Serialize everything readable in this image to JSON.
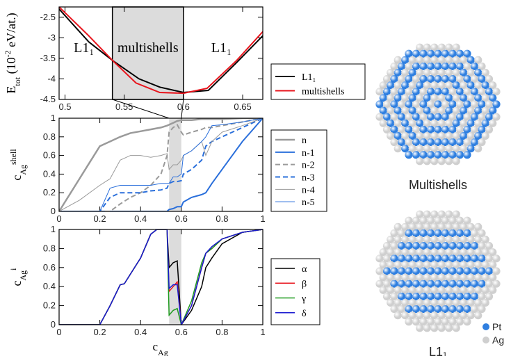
{
  "chart_data": [
    {
      "type": "line",
      "xlim": [
        0.495,
        0.667
      ],
      "ylim": [
        -4.5,
        -2.25
      ],
      "xticks": [
        0.5,
        0.55,
        0.6,
        0.65
      ],
      "yticks": [
        -2.5,
        -3,
        -3.5,
        -4,
        -4.5
      ],
      "shade": [
        0.54,
        0.6
      ],
      "ylabel": [
        {
          "text": "E"
        },
        {
          "text": "tot",
          "shift": "sub"
        },
        {
          "text": " (10"
        },
        {
          "text": "-2",
          "shift": "sup"
        },
        {
          "text": " eV/at.)"
        }
      ],
      "annotations": [
        "L1₁",
        "multishells",
        "L1₁"
      ],
      "series": [
        {
          "name": "L1₁",
          "color": "#000000",
          "width": 2,
          "x": [
            0.495,
            0.52,
            0.54,
            0.5625,
            0.58,
            0.6,
            0.621,
            0.645,
            0.667
          ],
          "values": [
            -2.3,
            -3.1,
            -3.55,
            -4.0,
            -4.2,
            -4.33,
            -4.28,
            -3.6,
            -2.95
          ]
        },
        {
          "name": "multishells",
          "color": "#e8141c",
          "width": 2,
          "x": [
            0.495,
            0.52,
            0.54,
            0.56,
            0.58,
            0.6,
            0.62,
            0.645,
            0.667
          ],
          "values": [
            -2.25,
            -2.95,
            -3.55,
            -4.1,
            -4.33,
            -4.35,
            -4.23,
            -3.55,
            -2.85
          ]
        }
      ]
    },
    {
      "type": "line",
      "xlim": [
        0,
        1
      ],
      "ylim": [
        0,
        1
      ],
      "xticks": [
        0,
        0.2,
        0.4,
        0.6,
        0.8,
        1
      ],
      "yticks": [
        0,
        0.2,
        0.4,
        0.6,
        0.8,
        1
      ],
      "shade": [
        0.54,
        0.6
      ],
      "ylabel": [
        {
          "text": "c"
        },
        {
          "text": "Ag",
          "shift": "sub"
        },
        {
          "text": "shell",
          "shift": "sup"
        }
      ],
      "x": [
        0,
        0.1,
        0.2,
        0.25,
        0.3,
        0.35,
        0.4,
        0.45,
        0.5,
        0.53,
        0.54,
        0.56,
        0.58,
        0.6,
        0.61,
        0.65,
        0.7,
        0.72,
        0.75,
        0.8,
        0.9,
        1
      ],
      "series": [
        {
          "name": "n",
          "color": "#9a9a9a",
          "width": 2.5,
          "dash": false,
          "values": [
            0,
            0.35,
            0.7,
            0.75,
            0.8,
            0.84,
            0.86,
            0.88,
            0.9,
            0.92,
            0.93,
            0.95,
            0.97,
            0.98,
            0.98,
            0.98,
            0.99,
            0.99,
            0.99,
            0.99,
            1,
            1
          ]
        },
        {
          "name": "n-1",
          "color": "#2a6fdb",
          "width": 2,
          "dash": false,
          "values": [
            0,
            0,
            0,
            0,
            0,
            0,
            0,
            0,
            0,
            0,
            0.02,
            0.03,
            0.05,
            0.05,
            0.1,
            0.15,
            0.18,
            0.2,
            0.3,
            0.45,
            0.75,
            1
          ]
        },
        {
          "name": "n-2",
          "color": "#9a9a9a",
          "width": 2,
          "dash": true,
          "values": [
            0,
            0,
            0,
            0,
            0.08,
            0.15,
            0.2,
            0.28,
            0.4,
            0.6,
            0.85,
            0.9,
            0.93,
            0.85,
            0.82,
            0.85,
            0.88,
            0.9,
            0.9,
            0.92,
            0.96,
            1
          ]
        },
        {
          "name": "n-3",
          "color": "#2a6fdb",
          "width": 2,
          "dash": true,
          "values": [
            0,
            0,
            0,
            0.15,
            0.2,
            0.2,
            0.2,
            0.22,
            0.23,
            0.25,
            0.3,
            0.32,
            0.32,
            0.33,
            0.4,
            0.45,
            0.55,
            0.7,
            0.75,
            0.8,
            0.9,
            1
          ]
        },
        {
          "name": "n-4",
          "color": "#9a9a9a",
          "width": 1,
          "dash": false,
          "values": [
            0,
            0.12,
            0.28,
            0.35,
            0.55,
            0.6,
            0.6,
            0.58,
            0.6,
            0.62,
            0.45,
            0.5,
            0.5,
            0.55,
            0.6,
            0.65,
            0.75,
            0.6,
            0.75,
            0.85,
            0.92,
            1
          ]
        },
        {
          "name": "n-5",
          "color": "#2a6fdb",
          "width": 1,
          "dash": false,
          "values": [
            0,
            0,
            0,
            0.25,
            0.28,
            0.28,
            0.28,
            0.28,
            0.3,
            0.3,
            0.3,
            0.37,
            0.37,
            0.4,
            0.6,
            0.65,
            0.75,
            0.8,
            0.92,
            0.93,
            0.96,
            1
          ]
        }
      ]
    },
    {
      "type": "line",
      "xlim": [
        0,
        1
      ],
      "ylim": [
        0,
        1
      ],
      "xticks": [
        0,
        0.2,
        0.4,
        0.6,
        0.8,
        1
      ],
      "yticks": [
        0,
        0.2,
        0.4,
        0.6,
        0.8,
        1
      ],
      "shade": [
        0.54,
        0.6
      ],
      "ylabel": [
        {
          "text": "c"
        },
        {
          "text": "Ag",
          "shift": "sub"
        },
        {
          "text": "i",
          "shift": "sup"
        }
      ],
      "xlabel": [
        {
          "text": "c"
        },
        {
          "text": "Ag",
          "shift": "sub"
        }
      ],
      "x": [
        0,
        0.2,
        0.25,
        0.3,
        0.32,
        0.4,
        0.45,
        0.48,
        0.53,
        0.54,
        0.56,
        0.58,
        0.6,
        0.65,
        0.7,
        0.72,
        0.75,
        0.8,
        0.9,
        1
      ],
      "series": [
        {
          "name": "α",
          "color": "#000000",
          "width": 1.5,
          "values": [
            0,
            0,
            0.2,
            0.42,
            0.43,
            0.7,
            0.95,
            1,
            1,
            0.6,
            0.65,
            0.67,
            0,
            0.15,
            0.4,
            0.6,
            0.7,
            0.85,
            0.97,
            1
          ]
        },
        {
          "name": "β",
          "color": "#e8141c",
          "width": 1.5,
          "values": [
            0,
            0,
            0.2,
            0.42,
            0.43,
            0.7,
            0.95,
            1,
            1,
            0.35,
            0.4,
            0.45,
            0,
            0.2,
            0.6,
            0.75,
            0.8,
            0.9,
            0.97,
            1
          ]
        },
        {
          "name": "γ",
          "color": "#1f9a1f",
          "width": 1.5,
          "values": [
            0,
            0,
            0.2,
            0.42,
            0.43,
            0.7,
            0.95,
            1,
            1,
            0.1,
            0.15,
            0.17,
            0,
            0.25,
            0.65,
            0.75,
            0.8,
            0.9,
            0.97,
            1
          ]
        },
        {
          "name": "δ",
          "color": "#1a1ad0",
          "width": 1.5,
          "values": [
            0,
            0,
            0.2,
            0.42,
            0.43,
            0.7,
            0.95,
            1,
            1,
            0.38,
            0.42,
            0.42,
            0,
            0.2,
            0.6,
            0.75,
            0.82,
            0.9,
            0.97,
            1
          ]
        }
      ]
    }
  ],
  "particles": {
    "panels": [
      {
        "label": "Multishells",
        "pattern": "shells"
      },
      {
        "label": "L1₁",
        "pattern": "rows"
      }
    ],
    "legend": [
      {
        "name": "Pt",
        "color": "#2f7fe0"
      },
      {
        "name": "Ag",
        "color": "#cfcfcf"
      }
    ]
  }
}
